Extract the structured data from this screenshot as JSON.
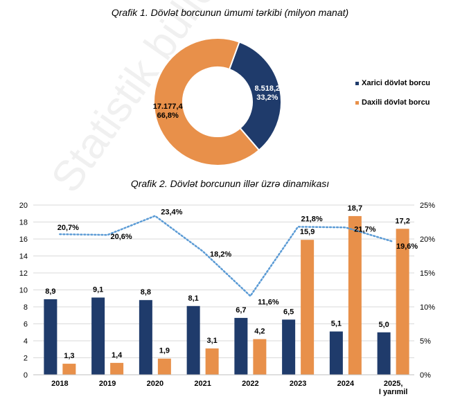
{
  "watermark": "Statistik bülleten-2025",
  "chart_data": [
    {
      "type": "pie",
      "title": "Qrafik 1. Dövlət borcunun ümumi tərkibi (milyon manat)",
      "donut": true,
      "slices": [
        {
          "name": "Xarici dövlət borcu",
          "value": 8518.2,
          "label": "8.518,2",
          "percent_label": "33,2%",
          "color": "#1f3b6b"
        },
        {
          "name": "Daxili dövlət borcu",
          "value": 17177.4,
          "label": "17.177,4",
          "percent_label": "66,8%",
          "color": "#e8904a"
        }
      ],
      "legend_position": "right"
    },
    {
      "type": "bar",
      "title": "Qrafik 2. Dövlət borcunun illər üzrə dinamikası",
      "categories": [
        "2018",
        "2019",
        "2020",
        "2021",
        "2022",
        "2023",
        "2024",
        "2025, I yarımil"
      ],
      "series": [
        {
          "values": [
            8.9,
            9.1,
            8.8,
            8.1,
            6.7,
            6.5,
            5.1,
            5.0
          ],
          "labels": [
            "8,9",
            "9,1",
            "8,8",
            "8,1",
            "6,7",
            "6,5",
            "5,1",
            "5,0"
          ],
          "color": "#1f3b6b",
          "kind": "bar"
        },
        {
          "values": [
            1.3,
            1.4,
            1.9,
            3.1,
            4.2,
            15.9,
            18.7,
            17.2
          ],
          "labels": [
            "1,3",
            "1,4",
            "1,9",
            "3,1",
            "4,2",
            "15,9",
            "18,7",
            "17,2"
          ],
          "color": "#e8904a",
          "kind": "bar"
        },
        {
          "values": [
            20.7,
            20.6,
            23.4,
            18.2,
            11.6,
            21.8,
            21.7,
            19.6
          ],
          "labels": [
            "20,7%",
            "20,6%",
            "23,4%",
            "18,2%",
            "11,6%",
            "21,8%",
            "21,7%",
            "19,6%"
          ],
          "color": "#5b9bd5",
          "kind": "dotted-line",
          "axis": "right"
        }
      ],
      "ylim": [
        0,
        20
      ],
      "yticks": [
        "0",
        "2",
        "4",
        "6",
        "8",
        "10",
        "12",
        "14",
        "16",
        "18",
        "20"
      ],
      "y2lim": [
        0,
        25
      ],
      "y2ticks": [
        "0%",
        "5%",
        "10%",
        "15%",
        "20%",
        "25%"
      ],
      "grid": true
    }
  ]
}
